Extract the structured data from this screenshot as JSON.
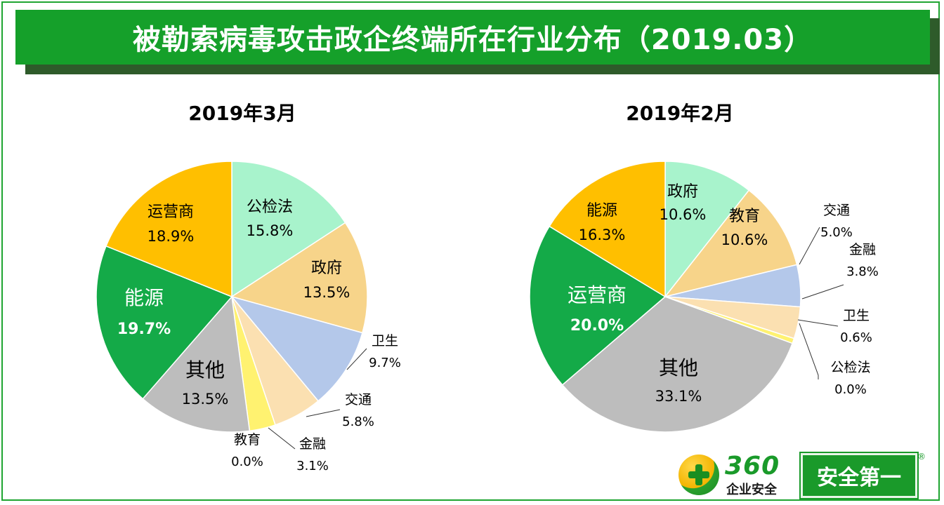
{
  "header": {
    "title": "被勒索病毒攻击政企终端所在行业分布（2019.03）"
  },
  "colors": {
    "banner": "#15a02a",
    "frame": "#1fa531"
  },
  "chart_data": [
    {
      "type": "pie",
      "title": "2019年3月",
      "slices": [
        {
          "label": "公检法",
          "value": 15.8,
          "display": "15.8%",
          "color": "#a8f3cc"
        },
        {
          "label": "政府",
          "value": 13.5,
          "display": "13.5%",
          "color": "#f7d48a"
        },
        {
          "label": "卫生",
          "value": 9.7,
          "display": "9.7%",
          "color": "#b4c8ea"
        },
        {
          "label": "交通",
          "value": 5.8,
          "display": "5.8%",
          "color": "#fbe0b1"
        },
        {
          "label": "金融",
          "value": 3.1,
          "display": "3.1%",
          "color": "#fff270"
        },
        {
          "label": "教育",
          "value": 0.0,
          "display": "0.0%",
          "color": "#f7d48a"
        },
        {
          "label": "其他",
          "value": 13.5,
          "display": "13.5%",
          "color": "#bdbdbd"
        },
        {
          "label": "能源",
          "value": 19.7,
          "display": "19.7%",
          "color": "#14aa48"
        },
        {
          "label": "运营商",
          "value": 18.9,
          "display": "18.9%",
          "color": "#ffbf00"
        }
      ]
    },
    {
      "type": "pie",
      "title": "2019年2月",
      "slices": [
        {
          "label": "政府",
          "value": 10.6,
          "display": "10.6%",
          "color": "#a8f3cc"
        },
        {
          "label": "教育",
          "value": 10.6,
          "display": "10.6%",
          "color": "#f7d48a"
        },
        {
          "label": "交通",
          "value": 5.0,
          "display": "5.0%",
          "color": "#b4c8ea"
        },
        {
          "label": "金融",
          "value": 3.8,
          "display": "3.8%",
          "color": "#fbe0b1"
        },
        {
          "label": "卫生",
          "value": 0.6,
          "display": "0.6%",
          "color": "#fff270"
        },
        {
          "label": "公检法",
          "value": 0.0,
          "display": "0.0%",
          "color": "#a8f3cc"
        },
        {
          "label": "其他",
          "value": 33.1,
          "display": "33.1%",
          "color": "#bdbdbd"
        },
        {
          "label": "运营商",
          "value": 20.0,
          "display": "20.0%",
          "color": "#14aa48"
        },
        {
          "label": "能源",
          "value": 16.3,
          "display": "16.3%",
          "color": "#ffbf00"
        }
      ]
    }
  ],
  "logo": {
    "brand_number": "360",
    "brand_sub": "企业安全",
    "slogan": "安全第一",
    "registered": "®"
  }
}
